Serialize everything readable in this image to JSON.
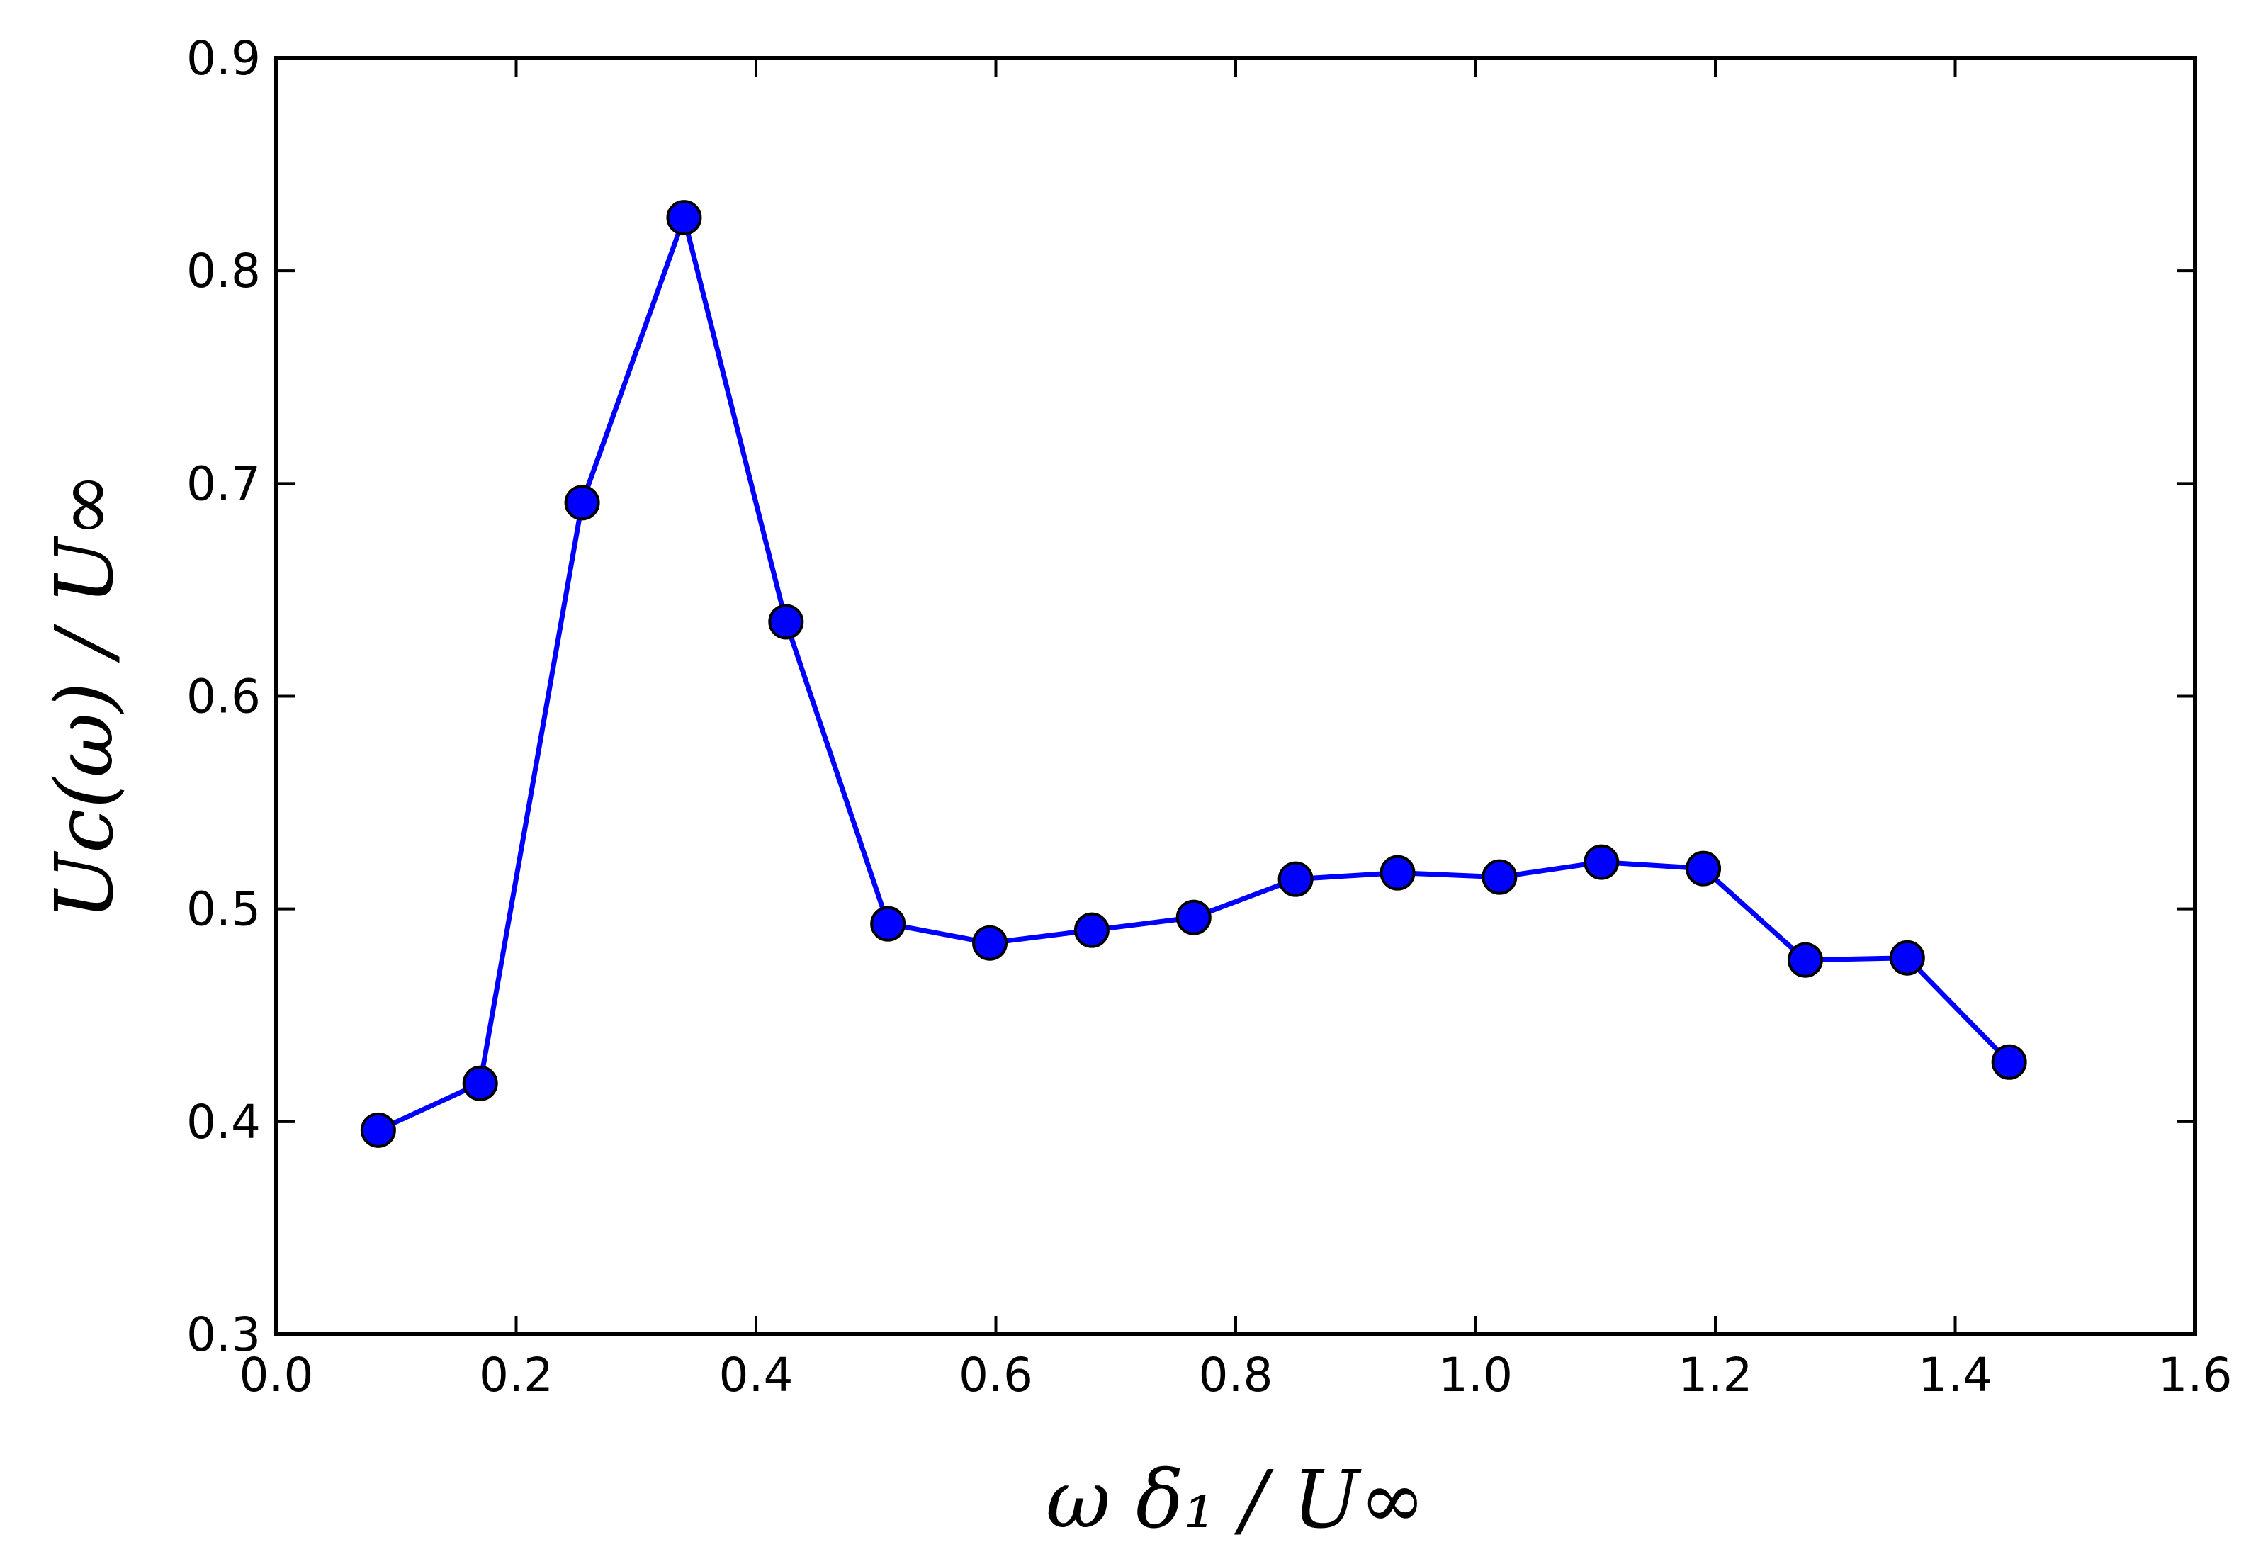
{
  "chart_data": {
    "type": "line",
    "title": "",
    "xlabel": "ω δ₁ / U∞",
    "ylabel": "Uc(ω) / U∞",
    "xlim": [
      0.0,
      1.6
    ],
    "ylim": [
      0.3,
      0.9
    ],
    "xticks": [
      0.0,
      0.2,
      0.4,
      0.6,
      0.8,
      1.0,
      1.2,
      1.4,
      1.6
    ],
    "yticks": [
      0.3,
      0.4,
      0.5,
      0.6,
      0.7,
      0.8,
      0.9
    ],
    "xtick_labels": [
      "0.0",
      "0.2",
      "0.4",
      "0.6",
      "0.8",
      "1.0",
      "1.2",
      "1.4",
      "1.6"
    ],
    "ytick_labels": [
      "0.3",
      "0.4",
      "0.5",
      "0.6",
      "0.7",
      "0.8",
      "0.9"
    ],
    "grid": false,
    "series": [
      {
        "name": "Uc",
        "color": "#0000ff",
        "marker": "circle",
        "x": [
          0.085,
          0.17,
          0.255,
          0.34,
          0.425,
          0.51,
          0.595,
          0.68,
          0.765,
          0.85,
          0.935,
          1.02,
          1.105,
          1.19,
          1.275,
          1.36,
          1.445
        ],
        "y": [
          0.396,
          0.418,
          0.691,
          0.825,
          0.635,
          0.493,
          0.484,
          0.49,
          0.496,
          0.514,
          0.517,
          0.515,
          0.522,
          0.519,
          0.476,
          0.477,
          0.428
        ]
      }
    ]
  }
}
